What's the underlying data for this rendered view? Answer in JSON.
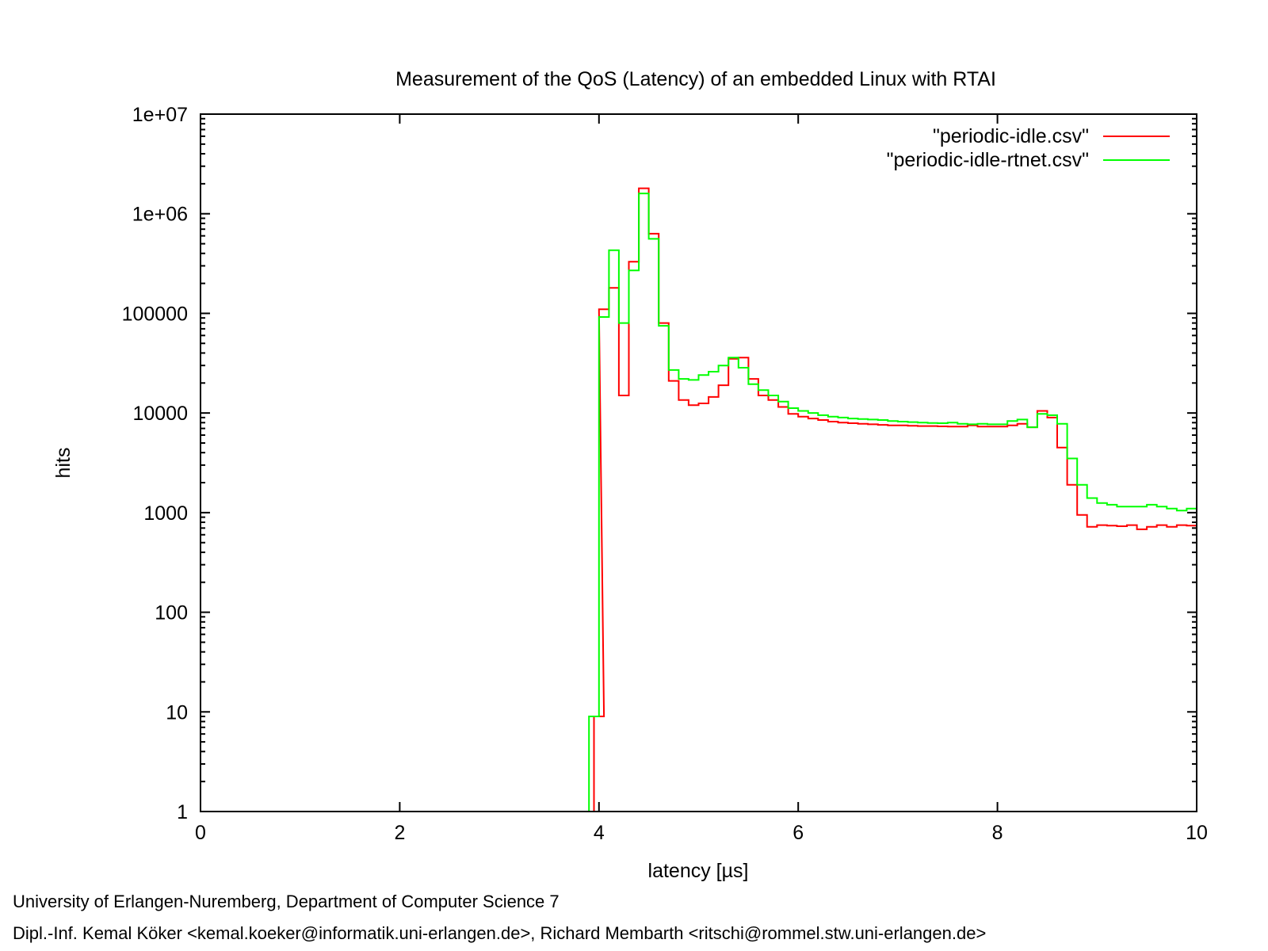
{
  "chart_data": {
    "type": "line",
    "style": "step",
    "title": "Measurement of the QoS (Latency) of an embedded Linux with RTAI",
    "xlabel": "latency [µs]",
    "ylabel": "hits",
    "xlim": [
      0,
      10
    ],
    "ylim": [
      1,
      10000000
    ],
    "yscale": "log",
    "grid": false,
    "legend_position": "top-right",
    "x_ticks": [
      0,
      2,
      4,
      6,
      8,
      10
    ],
    "x_tick_labels": [
      "0",
      "2",
      "4",
      "6",
      "8",
      "10"
    ],
    "y_ticks": [
      1,
      10,
      100,
      1000,
      10000,
      100000,
      1000000,
      10000000
    ],
    "y_tick_labels": [
      "1",
      "10",
      "100",
      "1000",
      "10000",
      "100000",
      "1e+06",
      "1e+07"
    ],
    "series": [
      {
        "name": "\"periodic-idle.csv\"",
        "color": "#ff0000",
        "x": [
          4.0,
          4.05,
          4.15,
          4.25,
          4.35,
          4.45,
          4.55,
          4.65,
          4.75,
          4.85,
          4.95,
          5.05,
          5.15,
          5.25,
          5.35,
          5.45,
          5.55,
          5.65,
          5.75,
          5.85,
          5.95,
          6.05,
          6.15,
          6.25,
          6.35,
          6.45,
          6.55,
          6.65,
          6.75,
          6.85,
          6.95,
          7.05,
          7.15,
          7.25,
          7.35,
          7.45,
          7.55,
          7.65,
          7.75,
          7.85,
          7.95,
          8.05,
          8.15,
          8.25,
          8.35,
          8.45,
          8.55,
          8.65,
          8.75,
          8.85,
          8.95,
          9.05,
          9.15,
          9.25,
          9.35,
          9.45,
          9.55,
          9.65,
          9.75,
          9.85,
          9.95
        ],
        "y": [
          9,
          110000,
          180000,
          15000,
          330000,
          1800000,
          630000,
          80000,
          21000,
          13500,
          12000,
          12500,
          14500,
          19000,
          35000,
          36000,
          22000,
          15000,
          13500,
          11500,
          9800,
          9200,
          8800,
          8500,
          8200,
          8000,
          7900,
          7800,
          7700,
          7600,
          7500,
          7500,
          7450,
          7400,
          7400,
          7350,
          7300,
          7300,
          7500,
          7300,
          7300,
          7300,
          7500,
          7800,
          7200,
          10500,
          9000,
          4500,
          1900,
          950,
          720,
          750,
          740,
          730,
          750,
          680,
          720,
          750,
          720,
          750,
          740
        ]
      },
      {
        "name": "\"periodic-idle-rtnet.csv\"",
        "color": "#00ff00",
        "x": [
          3.95,
          4.05,
          4.15,
          4.25,
          4.35,
          4.45,
          4.55,
          4.65,
          4.75,
          4.85,
          4.95,
          5.05,
          5.15,
          5.25,
          5.35,
          5.45,
          5.55,
          5.65,
          5.75,
          5.85,
          5.95,
          6.05,
          6.15,
          6.25,
          6.35,
          6.45,
          6.55,
          6.65,
          6.75,
          6.85,
          6.95,
          7.05,
          7.15,
          7.25,
          7.35,
          7.45,
          7.55,
          7.65,
          7.75,
          7.85,
          7.95,
          8.05,
          8.15,
          8.25,
          8.35,
          8.45,
          8.55,
          8.65,
          8.75,
          8.85,
          8.95,
          9.05,
          9.15,
          9.25,
          9.35,
          9.45,
          9.55,
          9.65,
          9.75,
          9.85,
          9.95
        ],
        "y": [
          9,
          92000,
          430000,
          80000,
          270000,
          1600000,
          560000,
          75000,
          27000,
          22000,
          21500,
          24000,
          26000,
          30000,
          36000,
          28500,
          19500,
          17000,
          15000,
          13000,
          11200,
          10500,
          10000,
          9500,
          9200,
          9000,
          8800,
          8700,
          8600,
          8500,
          8300,
          8200,
          8100,
          8000,
          7950,
          7900,
          8000,
          7800,
          7700,
          7800,
          7700,
          7700,
          8300,
          8600,
          7200,
          9800,
          9500,
          7800,
          3500,
          1900,
          1400,
          1250,
          1200,
          1150,
          1150,
          1150,
          1200,
          1150,
          1100,
          1050,
          1100
        ]
      }
    ]
  },
  "footer": {
    "line1": "University of Erlangen-Nuremberg, Department of Computer Science 7",
    "line2": "Dipl.-Inf. Kemal Köker <kemal.koeker@informatik.uni-erlangen.de>, Richard Membarth <ritschi@rommel.stw.uni-erlangen.de>"
  }
}
